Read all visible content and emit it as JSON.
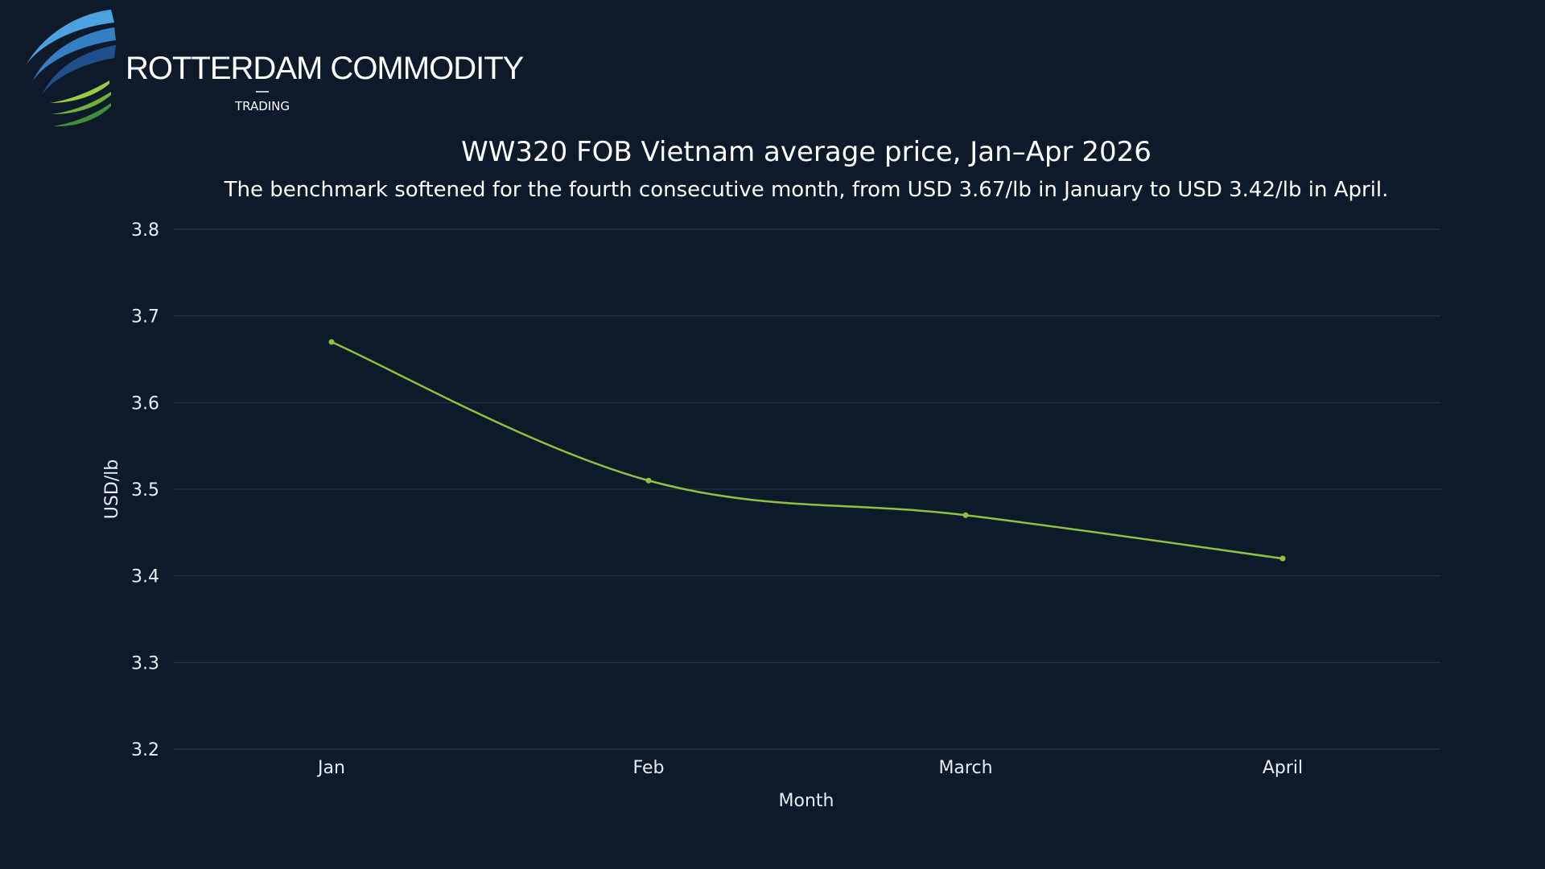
{
  "brand": {
    "name": "ROTTERDAM COMMODITY",
    "sub": "TRADING",
    "colors": {
      "blue_light": "#4aa3df",
      "blue_dark": "#1f4f8a",
      "green_light": "#9ccc44",
      "green_dark": "#3d8f3a"
    }
  },
  "colors": {
    "background": "#0e1a29",
    "series": "#8fc13e",
    "grid": "#2a3647"
  },
  "chart_data": {
    "type": "line",
    "title": "WW320 FOB Vietnam average price, Jan–Apr 2026",
    "subtitle": "The benchmark softened for the fourth consecutive month, from USD 3.67/lb in January to USD 3.42/lb in April.",
    "xlabel": "Month",
    "ylabel": "USD/lb",
    "categories": [
      "Jan",
      "Feb",
      "March",
      "April"
    ],
    "values": [
      3.67,
      3.51,
      3.47,
      3.42
    ],
    "ylim": [
      3.2,
      3.8
    ],
    "yticks": [
      "3.2",
      "3.3",
      "3.4",
      "3.5",
      "3.6",
      "3.7",
      "3.8"
    ],
    "grid": true,
    "legend": "none"
  }
}
